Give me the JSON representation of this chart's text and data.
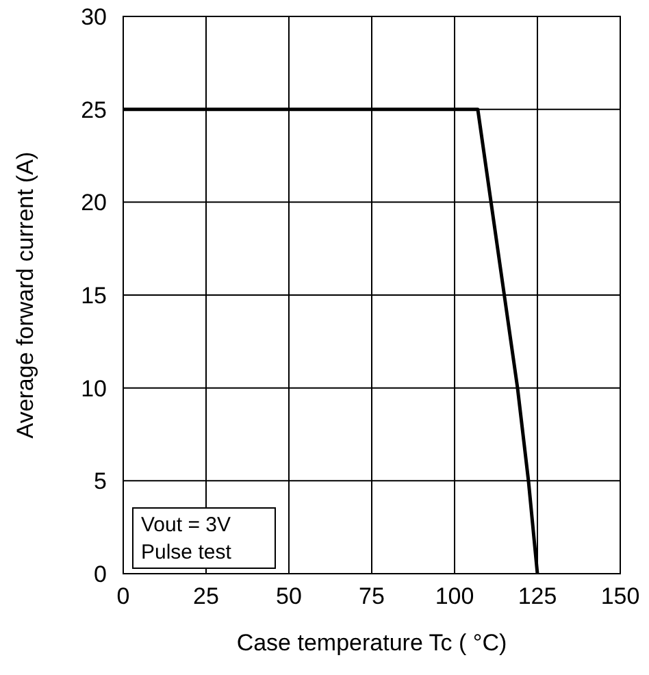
{
  "chart_data": {
    "type": "line",
    "xlabel": "Case temperature  Tc  ( °C)",
    "ylabel": "Average forward current  (A)",
    "x": [
      0,
      107,
      111,
      115,
      119,
      122.3,
      125
    ],
    "series": [
      {
        "color": "#000000",
        "values": [
          25,
          25,
          20,
          15,
          10,
          5,
          0
        ]
      }
    ],
    "xlim": [
      0,
      150
    ],
    "xticks": [
      0,
      25,
      50,
      75,
      100,
      125,
      150
    ],
    "ylim": [
      0,
      30
    ],
    "yticks": [
      0,
      5,
      10,
      15,
      20,
      25,
      30
    ],
    "grid": true,
    "marker": "none",
    "line_style": "solid",
    "annotations": [
      "Vout  = 3V",
      "Pulse test"
    ]
  }
}
